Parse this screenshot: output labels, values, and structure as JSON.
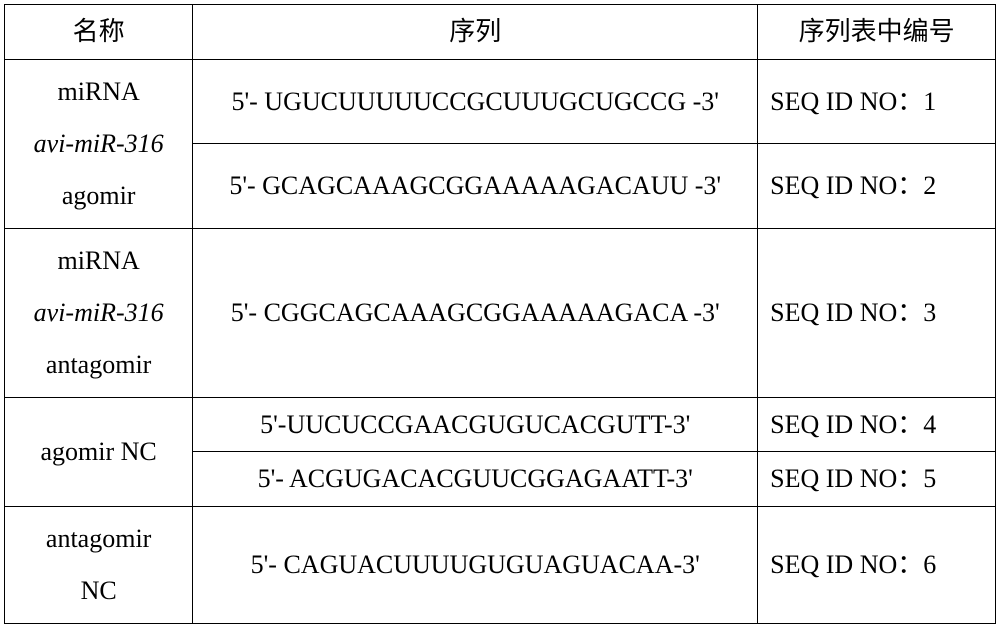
{
  "table": {
    "columns": {
      "name": "名称",
      "sequence": "序列",
      "id": "序列表中编号"
    },
    "group1": {
      "name_line1": "miRNA",
      "name_line2_italic": "avi-miR-316",
      "name_line3": "agomir",
      "row1": {
        "sequence": "5'- UGUCUUUUUCCGCUUUGCUGCCG -3'",
        "id": "SEQ ID NO：1"
      },
      "row2": {
        "sequence": "5'- GCAGCAAAGCGGAAAAAGACAUU -3'",
        "id": "SEQ ID NO：2"
      }
    },
    "group2": {
      "name_line1": "miRNA",
      "name_line2_italic": "avi-miR-316",
      "name_line3": "antagomir",
      "row1": {
        "sequence": "5'- CGGCAGCAAAGCGGAAAAAGACA -3'",
        "id": "SEQ ID NO：3"
      }
    },
    "group3": {
      "name_line1": "agomir NC",
      "row1": {
        "sequence": "5'-UUCUCCGAACGUGUCACGUTT-3'",
        "id": "SEQ ID NO：4"
      },
      "row2": {
        "sequence": "5'- ACGUGACACGUUCGGAGAATT-3'",
        "id": "SEQ ID NO：5"
      }
    },
    "group4": {
      "name_line1": "antagomir",
      "name_line2": "NC",
      "row1": {
        "sequence": "5'- CAGUACUUUUGUGUAGUACAA-3'",
        "id": "SEQ ID NO：6"
      }
    }
  },
  "styling": {
    "background_color": "#ffffff",
    "border_color": "#000000",
    "font_size": 26,
    "col_widths": [
      "19%",
      "57%",
      "24%"
    ]
  }
}
